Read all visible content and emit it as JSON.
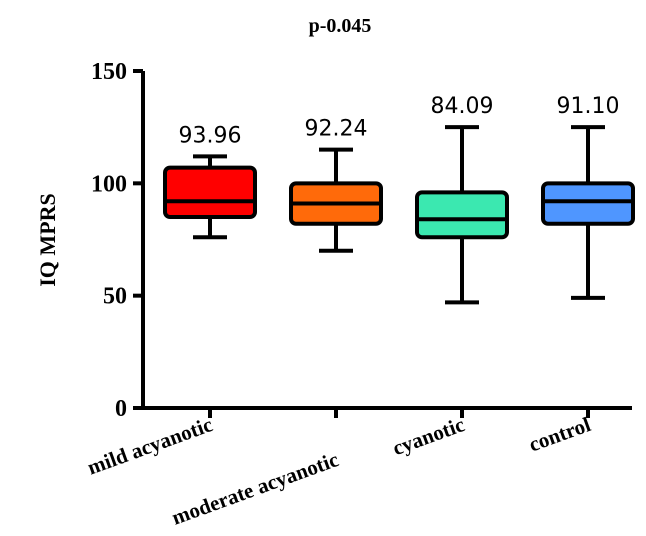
{
  "chart_data": {
    "type": "box",
    "title": "p-0.045",
    "ylabel": "IQ MPRS",
    "xlabel": "",
    "ylim": [
      0,
      150
    ],
    "yticks": [
      0,
      50,
      100,
      150
    ],
    "grid": false,
    "categories": [
      "mild acyanotic",
      "moderate acyanotic",
      "cyanotic",
      "control"
    ],
    "mean_labels": [
      "93.96",
      "92.24",
      "84.09",
      "91.10"
    ],
    "boxes": [
      {
        "category": "mild acyanotic",
        "min": 76,
        "q1": 85,
        "median": 92,
        "q3": 107,
        "max": 112,
        "color": "#ff0000"
      },
      {
        "category": "moderate acyanotic",
        "min": 70,
        "q1": 82,
        "median": 91,
        "q3": 100,
        "max": 115,
        "color": "#ff6a0a"
      },
      {
        "category": "cyanotic",
        "min": 47,
        "q1": 76,
        "median": 84,
        "q3": 96,
        "max": 125,
        "color": "#3be8b0"
      },
      {
        "category": "control",
        "min": 49,
        "q1": 82,
        "median": 92,
        "q3": 100,
        "max": 125,
        "color": "#4f96ff"
      }
    ]
  }
}
